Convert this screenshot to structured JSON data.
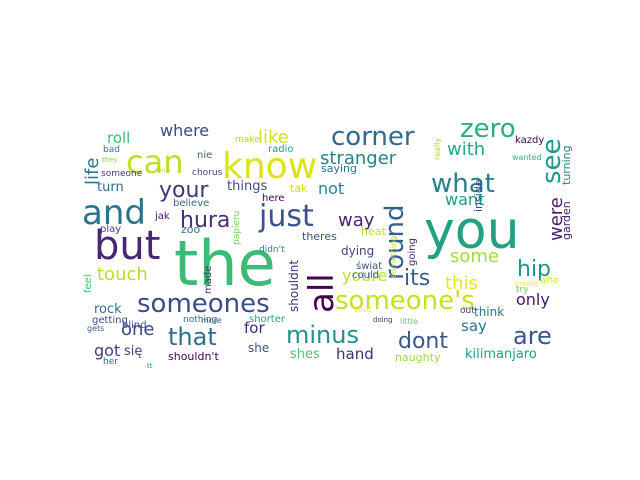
{
  "words": [
    {
      "text": "the",
      "color": "#3bbb75"
    },
    {
      "text": "you",
      "color": "#23a083"
    },
    {
      "text": "but",
      "color": "#482575"
    },
    {
      "text": "and",
      "color": "#2b748e"
    },
    {
      "text": "know",
      "color": "#dde318"
    },
    {
      "text": "can",
      "color": "#c2df23"
    },
    {
      "text": "just",
      "color": "#3b528b"
    },
    {
      "text": "someones",
      "color": "#3e4a89"
    },
    {
      "text": "someone's",
      "color": "#c8e020"
    },
    {
      "text": "all",
      "color": "#440154"
    },
    {
      "text": "round",
      "color": "#33628d"
    },
    {
      "text": "corner",
      "color": "#31688e"
    },
    {
      "text": "zero",
      "color": "#29af7f"
    },
    {
      "text": "what",
      "color": "#27808e"
    },
    {
      "text": "see",
      "color": "#1f9a8a"
    },
    {
      "text": "minus",
      "color": "#20928c"
    },
    {
      "text": "that",
      "color": "#2d708e"
    },
    {
      "text": "are",
      "color": "#3a548c"
    },
    {
      "text": "your",
      "color": "#46337f"
    },
    {
      "text": "hura",
      "color": "#472d7b"
    },
    {
      "text": "dont",
      "color": "#39568c"
    },
    {
      "text": "its",
      "color": "#355f8d"
    },
    {
      "text": "hip",
      "color": "#1f958b"
    },
    {
      "text": "stranger",
      "color": "#25838e"
    },
    {
      "text": "touch",
      "color": "#b5de2b"
    },
    {
      "text": "where",
      "color": "#3e4989"
    },
    {
      "text": "like",
      "color": "#d2e21b"
    },
    {
      "text": "life",
      "color": "#2a778e"
    },
    {
      "text": "way",
      "color": "#482475"
    },
    {
      "text": "with",
      "color": "#25ab82"
    },
    {
      "text": "were",
      "color": "#481f70"
    },
    {
      "text": "this",
      "color": "#eae51a"
    },
    {
      "text": "one",
      "color": "#414487"
    },
    {
      "text": "some",
      "color": "#a5db36"
    },
    {
      "text": "youre",
      "color": "#bddf26"
    },
    {
      "text": "only",
      "color": "#481467"
    },
    {
      "text": "not",
      "color": "#26828e"
    },
    {
      "text": "want",
      "color": "#1e9b8a"
    },
    {
      "text": "roll",
      "color": "#3dbc74"
    },
    {
      "text": "got",
      "color": "#433e85"
    },
    {
      "text": "hand",
      "color": "#472c7a"
    },
    {
      "text": "say",
      "color": "#2c728e"
    },
    {
      "text": "for",
      "color": "#482878"
    },
    {
      "text": "kilimanjaro",
      "color": "#1f9e89"
    },
    {
      "text": "turn",
      "color": "#2f6c8e"
    },
    {
      "text": "things",
      "color": "#3e4c8a"
    },
    {
      "text": "rock",
      "color": "#2e6f8e"
    },
    {
      "text": "garden",
      "color": "#482173"
    },
    {
      "text": "turning",
      "color": "#24868e"
    },
    {
      "text": "shes",
      "color": "#52c569"
    },
    {
      "text": "naughty",
      "color": "#a0da39"
    },
    {
      "text": "shouldn't",
      "color": "#440154"
    },
    {
      "text": "się",
      "color": "#424086"
    },
    {
      "text": "she",
      "color": "#39558c"
    },
    {
      "text": "think",
      "color": "#2b748e"
    },
    {
      "text": "dying",
      "color": "#3f4788"
    },
    {
      "text": "shouldnt",
      "color": "#46307e"
    },
    {
      "text": "theres",
      "color": "#3a548c"
    },
    {
      "text": "inside",
      "color": "#3d4d8a"
    },
    {
      "text": "tak",
      "color": "#cae11f"
    },
    {
      "text": "heat",
      "color": "#bade28"
    },
    {
      "text": "saying",
      "color": "#2c738e"
    },
    {
      "text": "zoo",
      "color": "#2a788e"
    },
    {
      "text": "jak",
      "color": "#471063"
    },
    {
      "text": "believe",
      "color": "#31678e"
    },
    {
      "text": "play",
      "color": "#424086"
    },
    {
      "text": "blind",
      "color": "#3b528b"
    },
    {
      "text": "getting",
      "color": "#3f4889"
    },
    {
      "text": "feel",
      "color": "#4ac16d"
    },
    {
      "text": "made",
      "color": "#46327e"
    },
    {
      "text": "nothing",
      "color": "#2c728e"
    },
    {
      "text": "shorter",
      "color": "#20a486"
    },
    {
      "text": "radio",
      "color": "#1f9f88"
    },
    {
      "text": "here",
      "color": "#440256"
    },
    {
      "text": "nie",
      "color": "#34608d"
    },
    {
      "text": "chorus",
      "color": "#3e4a89"
    },
    {
      "text": "someone",
      "color": "#443a83"
    },
    {
      "text": "bad",
      "color": "#287d8e"
    },
    {
      "text": "make",
      "color": "#addc30"
    },
    {
      "text": "they",
      "color": "#8bd646"
    },
    {
      "text": "how",
      "color": "#b5de2b"
    },
    {
      "text": "papieru",
      "color": "#75d054"
    },
    {
      "text": "didn't",
      "color": "#26828e"
    },
    {
      "text": "świat",
      "color": "#3b528b"
    },
    {
      "text": "could",
      "color": "#31678e"
    },
    {
      "text": "youd",
      "color": "#fde725"
    },
    {
      "text": "out",
      "color": "#443983"
    },
    {
      "text": "going",
      "color": "#482576"
    },
    {
      "text": "something",
      "color": "#c0df25"
    },
    {
      "text": "doing",
      "color": "#46327e"
    },
    {
      "text": "little",
      "color": "#5ec962"
    },
    {
      "text": "really",
      "color": "#aadc32"
    },
    {
      "text": "kazdy",
      "color": "#440154"
    },
    {
      "text": "wanted",
      "color": "#35b779"
    },
    {
      "text": "who",
      "color": "#d8e219"
    },
    {
      "text": "trouble",
      "color": "#fde725"
    },
    {
      "text": "try",
      "color": "#6ccd5a"
    },
    {
      "text": "more",
      "color": "#33638d"
    },
    {
      "text": "gets",
      "color": "#3a548c"
    },
    {
      "text": "her",
      "color": "#2a768e"
    },
    {
      "text": "tt",
      "color": "#21918c"
    }
  ]
}
